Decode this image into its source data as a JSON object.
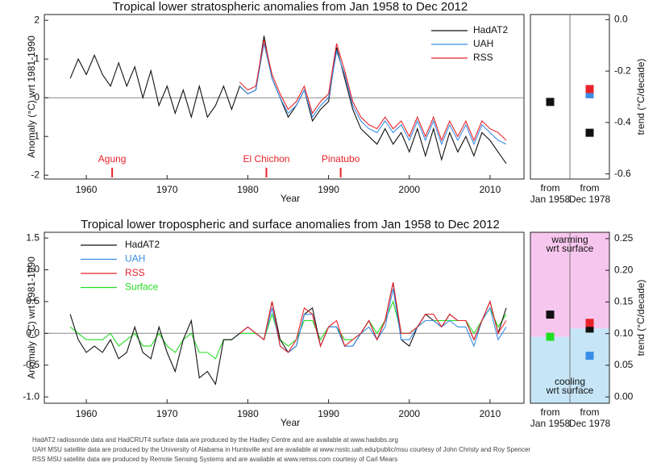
{
  "chart_data": [
    {
      "type": "line",
      "title": "Tropical lower stratospheric anomalies from Jan 1958 to Dec 2012",
      "x_label": "Year",
      "y_label": "Anomaly (°C) wrt 1981-1990",
      "x": [
        1958,
        1959,
        1960,
        1961,
        1962,
        1963,
        1964,
        1965,
        1966,
        1967,
        1968,
        1969,
        1970,
        1971,
        1972,
        1973,
        1974,
        1975,
        1976,
        1977,
        1978,
        1979,
        1980,
        1981,
        1982,
        1983,
        1984,
        1985,
        1986,
        1987,
        1988,
        1989,
        1990,
        1991,
        1992,
        1993,
        1994,
        1995,
        1996,
        1997,
        1998,
        1999,
        2000,
        2001,
        2002,
        2003,
        2004,
        2005,
        2006,
        2007,
        2008,
        2009,
        2010,
        2011,
        2012
      ],
      "xlim": [
        1954.8,
        2014.2
      ],
      "xticks": [
        1960,
        1970,
        1980,
        1990,
        2000,
        2010
      ],
      "ylim": [
        -2.1,
        2.15
      ],
      "yticks": [
        -2,
        -1,
        0,
        1,
        2
      ],
      "zero_line": true,
      "legend_position": "upper right",
      "legend_text_colored": false,
      "series": [
        {
          "name": "HadAT2",
          "color": "#111111",
          "values": [
            0.5,
            1.0,
            0.6,
            1.1,
            0.6,
            0.3,
            0.9,
            0.3,
            0.8,
            0.0,
            0.7,
            -0.2,
            0.3,
            -0.4,
            0.2,
            -0.5,
            0.3,
            -0.5,
            -0.2,
            0.3,
            -0.3,
            0.3,
            0.1,
            0.2,
            1.6,
            0.5,
            0.0,
            -0.5,
            -0.2,
            0.2,
            -0.6,
            -0.3,
            -0.1,
            1.3,
            0.5,
            -0.3,
            -0.8,
            -1.0,
            -1.2,
            -0.8,
            -1.2,
            -0.9,
            -1.4,
            -0.8,
            -1.5,
            -0.8,
            -1.6,
            -0.9,
            -1.4,
            -1.0,
            -1.5,
            -0.9,
            -1.1,
            -1.4,
            -1.7
          ],
          "trends": [
            -0.32,
            -0.44
          ]
        },
        {
          "name": "UAH",
          "color": "#3a8ee6",
          "values": [
            null,
            null,
            null,
            null,
            null,
            null,
            null,
            null,
            null,
            null,
            null,
            null,
            null,
            null,
            null,
            null,
            null,
            null,
            null,
            null,
            null,
            0.3,
            0.1,
            0.2,
            1.4,
            0.5,
            0.0,
            -0.4,
            -0.2,
            0.2,
            -0.5,
            -0.2,
            0.0,
            1.2,
            0.6,
            -0.2,
            -0.6,
            -0.8,
            -0.9,
            -0.6,
            -0.9,
            -0.7,
            -1.1,
            -0.6,
            -1.1,
            -0.6,
            -1.2,
            -0.7,
            -1.1,
            -0.7,
            -1.2,
            -0.7,
            -0.9,
            -1.1,
            -1.2
          ],
          "trends": [
            null,
            -0.29
          ]
        },
        {
          "name": "RSS",
          "color": "#e8222a",
          "values": [
            null,
            null,
            null,
            null,
            null,
            null,
            null,
            null,
            null,
            null,
            null,
            null,
            null,
            null,
            null,
            null,
            null,
            null,
            null,
            null,
            null,
            0.4,
            0.2,
            0.3,
            1.5,
            0.6,
            0.1,
            -0.3,
            -0.1,
            0.3,
            -0.4,
            -0.1,
            0.1,
            1.4,
            0.7,
            -0.1,
            -0.5,
            -0.7,
            -0.8,
            -0.5,
            -0.8,
            -0.6,
            -1.0,
            -0.5,
            -1.0,
            -0.5,
            -1.1,
            -0.6,
            -1.0,
            -0.6,
            -1.1,
            -0.6,
            -0.8,
            -0.9,
            -1.1
          ],
          "trends": [
            null,
            -0.27
          ]
        }
      ],
      "annotations": [
        {
          "text": "Agung",
          "x": 1963.2
        },
        {
          "text": "El Chichon",
          "x": 1982.3
        },
        {
          "text": "Pinatubo",
          "x": 1991.5
        }
      ],
      "trend_categories": [
        [
          "from",
          "Jan 1958"
        ],
        [
          "from",
          "Dec 1978"
        ]
      ],
      "y2_label": "trend (°C/decade)",
      "y2lim": [
        -0.62,
        0.02
      ],
      "y2ticks": [
        {
          "value": 0,
          "label": "0.0"
        },
        -0.2,
        -0.4,
        -0.6
      ]
    },
    {
      "type": "line",
      "title": "Tropical lower tropospheric and surface anomalies from Jan 1958 to Dec 2012",
      "x_label": "Year",
      "y_label": "Anomaly (°C) wrt 1981-1990",
      "x": [
        1958,
        1959,
        1960,
        1961,
        1962,
        1963,
        1964,
        1965,
        1966,
        1967,
        1968,
        1969,
        1970,
        1971,
        1972,
        1973,
        1974,
        1975,
        1976,
        1977,
        1978,
        1979,
        1980,
        1981,
        1982,
        1983,
        1984,
        1985,
        1986,
        1987,
        1988,
        1989,
        1990,
        1991,
        1992,
        1993,
        1994,
        1995,
        1996,
        1997,
        1998,
        1999,
        2000,
        2001,
        2002,
        2003,
        2004,
        2005,
        2006,
        2007,
        2008,
        2009,
        2010,
        2011,
        2012
      ],
      "xlim": [
        1954.8,
        2014.2
      ],
      "xticks": [
        1960,
        1970,
        1980,
        1990,
        2000,
        2010
      ],
      "ylim": [
        -1.1,
        1.59
      ],
      "yticks": [
        {
          "value": -1,
          "label": "-1.0"
        },
        -0.5,
        {
          "value": 0,
          "label": "0.0"
        },
        0.5,
        {
          "value": 1,
          "label": "1.0"
        },
        1.5
      ],
      "zero_line": true,
      "legend_position": "upper left",
      "legend_text_colored": true,
      "series": [
        {
          "name": "HadAT2",
          "color": "#111111",
          "values": [
            0.3,
            -0.1,
            -0.3,
            -0.2,
            -0.3,
            -0.1,
            -0.4,
            -0.3,
            0.1,
            -0.3,
            -0.4,
            0.1,
            -0.3,
            -0.6,
            -0.1,
            0.2,
            -0.7,
            -0.6,
            -0.8,
            -0.1,
            -0.1,
            0.0,
            0.1,
            0.0,
            -0.1,
            0.5,
            -0.1,
            -0.3,
            -0.2,
            0.3,
            0.4,
            -0.2,
            0.1,
            0.1,
            -0.2,
            -0.2,
            0.0,
            0.2,
            -0.1,
            0.2,
            0.8,
            -0.1,
            -0.2,
            0.1,
            0.3,
            0.2,
            0.1,
            0.3,
            0.2,
            0.2,
            -0.1,
            0.2,
            0.5,
            0.0,
            0.4
          ],
          "trends": [
            0.13,
            0.108
          ]
        },
        {
          "name": "UAH",
          "color": "#3a8ee6",
          "values": [
            null,
            null,
            null,
            null,
            null,
            null,
            null,
            null,
            null,
            null,
            null,
            null,
            null,
            null,
            null,
            null,
            null,
            null,
            null,
            null,
            null,
            0.0,
            0.1,
            0.0,
            -0.1,
            0.4,
            -0.2,
            -0.3,
            -0.2,
            0.3,
            0.3,
            -0.2,
            0.1,
            0.1,
            -0.2,
            -0.2,
            0.0,
            0.1,
            -0.1,
            0.1,
            0.7,
            -0.1,
            -0.1,
            0.1,
            0.2,
            0.2,
            0.1,
            0.2,
            0.1,
            0.1,
            -0.2,
            0.2,
            0.4,
            -0.1,
            0.1
          ],
          "trends": [
            null,
            0.065
          ]
        },
        {
          "name": "RSS",
          "color": "#e8222a",
          "values": [
            null,
            null,
            null,
            null,
            null,
            null,
            null,
            null,
            null,
            null,
            null,
            null,
            null,
            null,
            null,
            null,
            null,
            null,
            null,
            null,
            null,
            0.0,
            0.1,
            0.0,
            -0.1,
            0.5,
            -0.2,
            -0.3,
            -0.1,
            0.4,
            0.3,
            -0.2,
            0.1,
            0.2,
            -0.2,
            -0.1,
            0.0,
            0.2,
            -0.1,
            0.2,
            0.8,
            0.0,
            0.0,
            0.1,
            0.3,
            0.3,
            0.1,
            0.3,
            0.2,
            0.2,
            -0.1,
            0.2,
            0.5,
            0.0,
            0.2
          ],
          "trends": [
            null,
            0.117
          ]
        },
        {
          "name": "Surface",
          "color": "#22dd22",
          "values": [
            0.1,
            0.0,
            -0.1,
            -0.1,
            -0.1,
            0.0,
            -0.2,
            -0.1,
            0.0,
            -0.2,
            -0.2,
            0.0,
            -0.2,
            -0.3,
            -0.1,
            0.0,
            -0.3,
            -0.3,
            -0.4,
            -0.1,
            -0.1,
            0.0,
            0.0,
            0.0,
            -0.1,
            0.3,
            -0.1,
            -0.2,
            -0.1,
            0.2,
            0.2,
            -0.1,
            0.1,
            0.1,
            -0.1,
            -0.1,
            0.0,
            0.2,
            0.0,
            0.2,
            0.5,
            0.0,
            0.0,
            0.1,
            0.2,
            0.2,
            0.2,
            0.2,
            0.2,
            0.2,
            0.0,
            0.2,
            0.4,
            0.1,
            0.3
          ],
          "trends": [
            0.095,
            0.108
          ],
          "surface": true
        }
      ],
      "trend_regions": [
        {
          "text": [
            "warming",
            "wrt surface"
          ],
          "color": "#f7c6ee"
        },
        {
          "text": [
            "cooling",
            "wrt surface"
          ],
          "color": "#c6e6f7"
        }
      ],
      "trend_categories": [
        [
          "from",
          "Jan 1958"
        ],
        [
          "from",
          "Dec 1978"
        ]
      ],
      "y2_label": "trend (°C/decade)",
      "y2lim": [
        -0.01,
        0.26
      ],
      "y2ticks": [
        {
          "value": 0,
          "label": "0.00"
        },
        0.05,
        {
          "value": 0.1,
          "label": "0.10"
        },
        0.15,
        {
          "value": 0.2,
          "label": "0.20"
        },
        0.25
      ]
    }
  ],
  "footer": [
    "HadAT2 radiosonde data and HadCRUT4 surface data are produced by the Hadley Centre and are available at www.hadobs.org",
    "UAH MSU satellite data are produced by the University of Alabama in Huntsville and are available at www.nsstc.uah.edu/public/msu courtesy of John Christy and Roy Spencer",
    "RSS MSU satellite data are produced by Remote Sensing Systems and are available at www.remss.com courtesy of Carl Mears"
  ]
}
